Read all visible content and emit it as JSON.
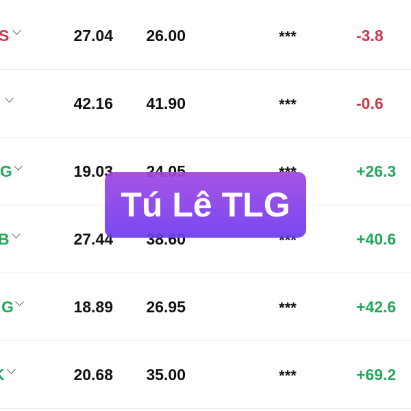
{
  "rows": [
    {
      "ticker": "S",
      "val1": "27.04",
      "val2": "26.00",
      "masked": "***",
      "change": "-3.8",
      "trend": "down"
    },
    {
      "ticker": "",
      "val1": "42.16",
      "val2": "41.90",
      "masked": "***",
      "change": "-0.6",
      "trend": "down"
    },
    {
      "ticker": "G",
      "val1": "19.03",
      "val2": "24.05",
      "masked": "***",
      "change": "+26.3",
      "trend": "up"
    },
    {
      "ticker": "B",
      "val1": "27.44",
      "val2": "38.60",
      "masked": "***",
      "change": "+40.6",
      "trend": "up"
    },
    {
      "ticker": "G",
      "val1": "18.89",
      "val2": "26.95",
      "masked": "***",
      "change": "+42.6",
      "trend": "up"
    },
    {
      "ticker": "K",
      "val1": "20.68",
      "val2": "35.00",
      "masked": "***",
      "change": "+69.2",
      "trend": "up"
    }
  ],
  "colors": {
    "down": "#d0364b",
    "up": "#1fa85c",
    "overlay": "#8a4fe8"
  },
  "watermark": "Tú Lê TLG"
}
